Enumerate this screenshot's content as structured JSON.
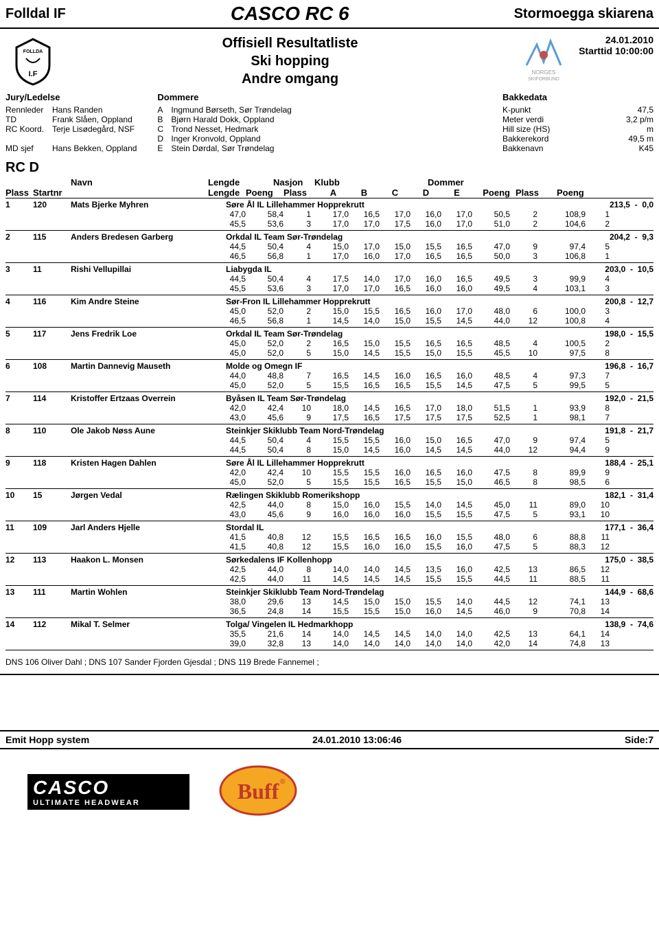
{
  "header": {
    "left": "Folldal IF",
    "center": "CASCO RC 6",
    "right": "Stormoegga skiarena",
    "title": [
      "Offisiell Resultatliste",
      "Ski hopping",
      "Andre omgang"
    ],
    "date": "24.01.2010",
    "starttime": "Starttid 10:00:00"
  },
  "officials": {
    "jury_heading": "Jury/Ledelse",
    "jury": [
      {
        "role": "Rennleder",
        "name": "Hans Randen"
      },
      {
        "role": "TD",
        "name": "Frank Slåen, Oppland"
      },
      {
        "role": "RC Koord.",
        "name": "Terje Lisødegård, NSF"
      },
      {
        "role": "MD sjef",
        "name": "Hans Bekken, Oppland"
      }
    ],
    "judges_heading": "Dommere",
    "judges": [
      {
        "code": "A",
        "name": "Ingmund Børseth, Sør Trøndelag"
      },
      {
        "code": "B",
        "name": "Bjørn Harald Dokk, Oppland"
      },
      {
        "code": "C",
        "name": "Trond Nesset, Hedmark"
      },
      {
        "code": "D",
        "name": "Inger Kronvold, Oppland"
      },
      {
        "code": "E",
        "name": "Stein Dørdal, Sør Trøndelag"
      }
    ],
    "bakkedata_heading": "Bakkedata",
    "bakkedata": [
      {
        "label": "K-punkt",
        "value": "47,5"
      },
      {
        "label": "Meter verdi",
        "value": "3,2 p/m"
      },
      {
        "label": "Hill size (HS)",
        "value": "m"
      },
      {
        "label": "Bakkerekord",
        "value": "49,5 m"
      },
      {
        "label": "Bakkenavn",
        "value": "K45"
      }
    ]
  },
  "class_name": "RC D",
  "columns": {
    "line1": [
      "Navn",
      "Lengde",
      "Nasjon",
      "Klubb",
      "Dommer"
    ],
    "line2": [
      "Plass",
      "Startnr",
      "Lengde",
      "Poeng",
      "Plass",
      "A",
      "B",
      "C",
      "D",
      "E",
      "Poeng",
      "Plass",
      "Poeng"
    ]
  },
  "results": [
    {
      "pl": "1",
      "nr": "120",
      "name": "Mats Bjerke Myhren",
      "club": "Søre Ål IL Lillehammer Hopprekrutt",
      "total": "213,5",
      "diff": "0,0",
      "j": [
        [
          "47,0",
          "58,4",
          "1",
          "17,0",
          "16,5",
          "17,0",
          "16,0",
          "17,0",
          "50,5",
          "2",
          "108,9",
          "1"
        ],
        [
          "45,5",
          "53,6",
          "3",
          "17,0",
          "17,0",
          "17,5",
          "16,0",
          "17,0",
          "51,0",
          "2",
          "104,6",
          "2"
        ]
      ]
    },
    {
      "pl": "2",
      "nr": "115",
      "name": "Anders Bredesen Garberg",
      "club": "Orkdal IL Team Sør-Trøndelag",
      "total": "204,2",
      "diff": "9,3",
      "j": [
        [
          "44,5",
          "50,4",
          "4",
          "15,0",
          "17,0",
          "15,0",
          "15,5",
          "16,5",
          "47,0",
          "9",
          "97,4",
          "5"
        ],
        [
          "46,5",
          "56,8",
          "1",
          "17,0",
          "16,0",
          "17,0",
          "16,5",
          "16,5",
          "50,0",
          "3",
          "106,8",
          "1"
        ]
      ]
    },
    {
      "pl": "3",
      "nr": "11",
      "name": "Rishi Vellupillai",
      "club": "Liabygda IL",
      "total": "203,0",
      "diff": "10,5",
      "j": [
        [
          "44,5",
          "50,4",
          "4",
          "17,5",
          "14,0",
          "17,0",
          "16,0",
          "16,5",
          "49,5",
          "3",
          "99,9",
          "4"
        ],
        [
          "45,5",
          "53,6",
          "3",
          "17,0",
          "17,0",
          "16,5",
          "16,0",
          "16,0",
          "49,5",
          "4",
          "103,1",
          "3"
        ]
      ]
    },
    {
      "pl": "4",
      "nr": "116",
      "name": "Kim Andre Steine",
      "club": "Sør-Fron IL Lillehammer Hopprekrutt",
      "total": "200,8",
      "diff": "12,7",
      "j": [
        [
          "45,0",
          "52,0",
          "2",
          "15,0",
          "15,5",
          "16,5",
          "16,0",
          "17,0",
          "48,0",
          "6",
          "100,0",
          "3"
        ],
        [
          "46,5",
          "56,8",
          "1",
          "14,5",
          "14,0",
          "15,0",
          "15,5",
          "14,5",
          "44,0",
          "12",
          "100,8",
          "4"
        ]
      ]
    },
    {
      "pl": "5",
      "nr": "117",
      "name": "Jens Fredrik Loe",
      "club": "Orkdal IL Team Sør-Trøndelag",
      "total": "198,0",
      "diff": "15,5",
      "j": [
        [
          "45,0",
          "52,0",
          "2",
          "16,5",
          "15,0",
          "15,5",
          "16,5",
          "16,5",
          "48,5",
          "4",
          "100,5",
          "2"
        ],
        [
          "45,0",
          "52,0",
          "5",
          "15,0",
          "14,5",
          "15,5",
          "15,0",
          "15,5",
          "45,5",
          "10",
          "97,5",
          "8"
        ]
      ]
    },
    {
      "pl": "6",
      "nr": "108",
      "name": "Martin Dannevig Mauseth",
      "club": "Molde og Omegn IF",
      "total": "196,8",
      "diff": "16,7",
      "j": [
        [
          "44,0",
          "48,8",
          "7",
          "16,5",
          "14,5",
          "16,0",
          "16,5",
          "16,0",
          "48,5",
          "4",
          "97,3",
          "7"
        ],
        [
          "45,0",
          "52,0",
          "5",
          "15,5",
          "16,5",
          "16,5",
          "15,5",
          "14,5",
          "47,5",
          "5",
          "99,5",
          "5"
        ]
      ]
    },
    {
      "pl": "7",
      "nr": "114",
      "name": "Kristoffer Ertzaas Overrein",
      "club": "Byåsen IL Team Sør-Trøndelag",
      "total": "192,0",
      "diff": "21,5",
      "j": [
        [
          "42,0",
          "42,4",
          "10",
          "18,0",
          "14,5",
          "16,5",
          "17,0",
          "18,0",
          "51,5",
          "1",
          "93,9",
          "8"
        ],
        [
          "43,0",
          "45,6",
          "9",
          "17,5",
          "16,5",
          "17,5",
          "17,5",
          "17,5",
          "52,5",
          "1",
          "98,1",
          "7"
        ]
      ]
    },
    {
      "pl": "8",
      "nr": "110",
      "name": "Ole Jakob Nøss Aune",
      "club": "Steinkjer Skiklubb Team Nord-Trøndelag",
      "total": "191,8",
      "diff": "21,7",
      "j": [
        [
          "44,5",
          "50,4",
          "4",
          "15,5",
          "15,5",
          "16,0",
          "15,0",
          "16,5",
          "47,0",
          "9",
          "97,4",
          "5"
        ],
        [
          "44,5",
          "50,4",
          "8",
          "15,0",
          "14,5",
          "16,0",
          "14,5",
          "14,5",
          "44,0",
          "12",
          "94,4",
          "9"
        ]
      ]
    },
    {
      "pl": "9",
      "nr": "118",
      "name": "Kristen Hagen Dahlen",
      "club": "Søre Ål IL Lillehammer Hopprekrutt",
      "total": "188,4",
      "diff": "25,1",
      "j": [
        [
          "42,0",
          "42,4",
          "10",
          "15,5",
          "15,5",
          "16,0",
          "16,5",
          "16,0",
          "47,5",
          "8",
          "89,9",
          "9"
        ],
        [
          "45,0",
          "52,0",
          "5",
          "15,5",
          "15,5",
          "16,5",
          "15,5",
          "15,0",
          "46,5",
          "8",
          "98,5",
          "6"
        ]
      ]
    },
    {
      "pl": "10",
      "nr": "15",
      "name": "Jørgen Vedal",
      "club": "Rælingen Skiklubb Romerikshopp",
      "total": "182,1",
      "diff": "31,4",
      "j": [
        [
          "42,5",
          "44,0",
          "8",
          "15,0",
          "16,0",
          "15,5",
          "14,0",
          "14,5",
          "45,0",
          "11",
          "89,0",
          "10"
        ],
        [
          "43,0",
          "45,6",
          "9",
          "16,0",
          "16,0",
          "16,0",
          "15,5",
          "15,5",
          "47,5",
          "5",
          "93,1",
          "10"
        ]
      ]
    },
    {
      "pl": "11",
      "nr": "109",
      "name": "Jarl Anders Hjelle",
      "club": "Stordal IL",
      "total": "177,1",
      "diff": "36,4",
      "j": [
        [
          "41,5",
          "40,8",
          "12",
          "15,5",
          "16,5",
          "16,5",
          "16,0",
          "15,5",
          "48,0",
          "6",
          "88,8",
          "11"
        ],
        [
          "41,5",
          "40,8",
          "12",
          "15,5",
          "16,0",
          "16,0",
          "15,5",
          "16,0",
          "47,5",
          "5",
          "88,3",
          "12"
        ]
      ]
    },
    {
      "pl": "12",
      "nr": "113",
      "name": "Haakon L. Monsen",
      "club": "Sørkedalens IF Kollenhopp",
      "total": "175,0",
      "diff": "38,5",
      "j": [
        [
          "42,5",
          "44,0",
          "8",
          "14,0",
          "14,0",
          "14,5",
          "13,5",
          "16,0",
          "42,5",
          "13",
          "86,5",
          "12"
        ],
        [
          "42,5",
          "44,0",
          "11",
          "14,5",
          "14,5",
          "14,5",
          "15,5",
          "15,5",
          "44,5",
          "11",
          "88,5",
          "11"
        ]
      ]
    },
    {
      "pl": "13",
      "nr": "111",
      "name": "Martin Wohlen",
      "club": "Steinkjer Skiklubb Team Nord-Trøndelag",
      "total": "144,9",
      "diff": "68,6",
      "j": [
        [
          "38,0",
          "29,6",
          "13",
          "14,5",
          "15,0",
          "15,0",
          "15,5",
          "14,0",
          "44,5",
          "12",
          "74,1",
          "13"
        ],
        [
          "36,5",
          "24,8",
          "14",
          "15,5",
          "15,5",
          "15,0",
          "16,0",
          "14,5",
          "46,0",
          "9",
          "70,8",
          "14"
        ]
      ]
    },
    {
      "pl": "14",
      "nr": "112",
      "name": "Mikal T. Selmer",
      "club": "Tolga/ Vingelen IL Hedmarkhopp",
      "total": "138,9",
      "diff": "74,6",
      "j": [
        [
          "35,5",
          "21,6",
          "14",
          "14,0",
          "14,5",
          "14,5",
          "14,0",
          "14,0",
          "42,5",
          "13",
          "64,1",
          "14"
        ],
        [
          "39,0",
          "32,8",
          "13",
          "14,0",
          "14,0",
          "14,0",
          "14,0",
          "14,0",
          "42,0",
          "14",
          "74,8",
          "13"
        ]
      ]
    }
  ],
  "dns_line": "DNS 106 Oliver Dahl ; DNS 107 Sander Fjorden Gjesdal ; DNS 119 Brede Fannemel ;",
  "footer": {
    "left": "Emit Hopp system",
    "center": "24.01.2010 13:06:46",
    "right": "Side:7"
  },
  "sponsors": {
    "casco_brand": "CASCO",
    "casco_tag": "ULTIMATE HEADWEAR",
    "buff_text": "Buff"
  }
}
